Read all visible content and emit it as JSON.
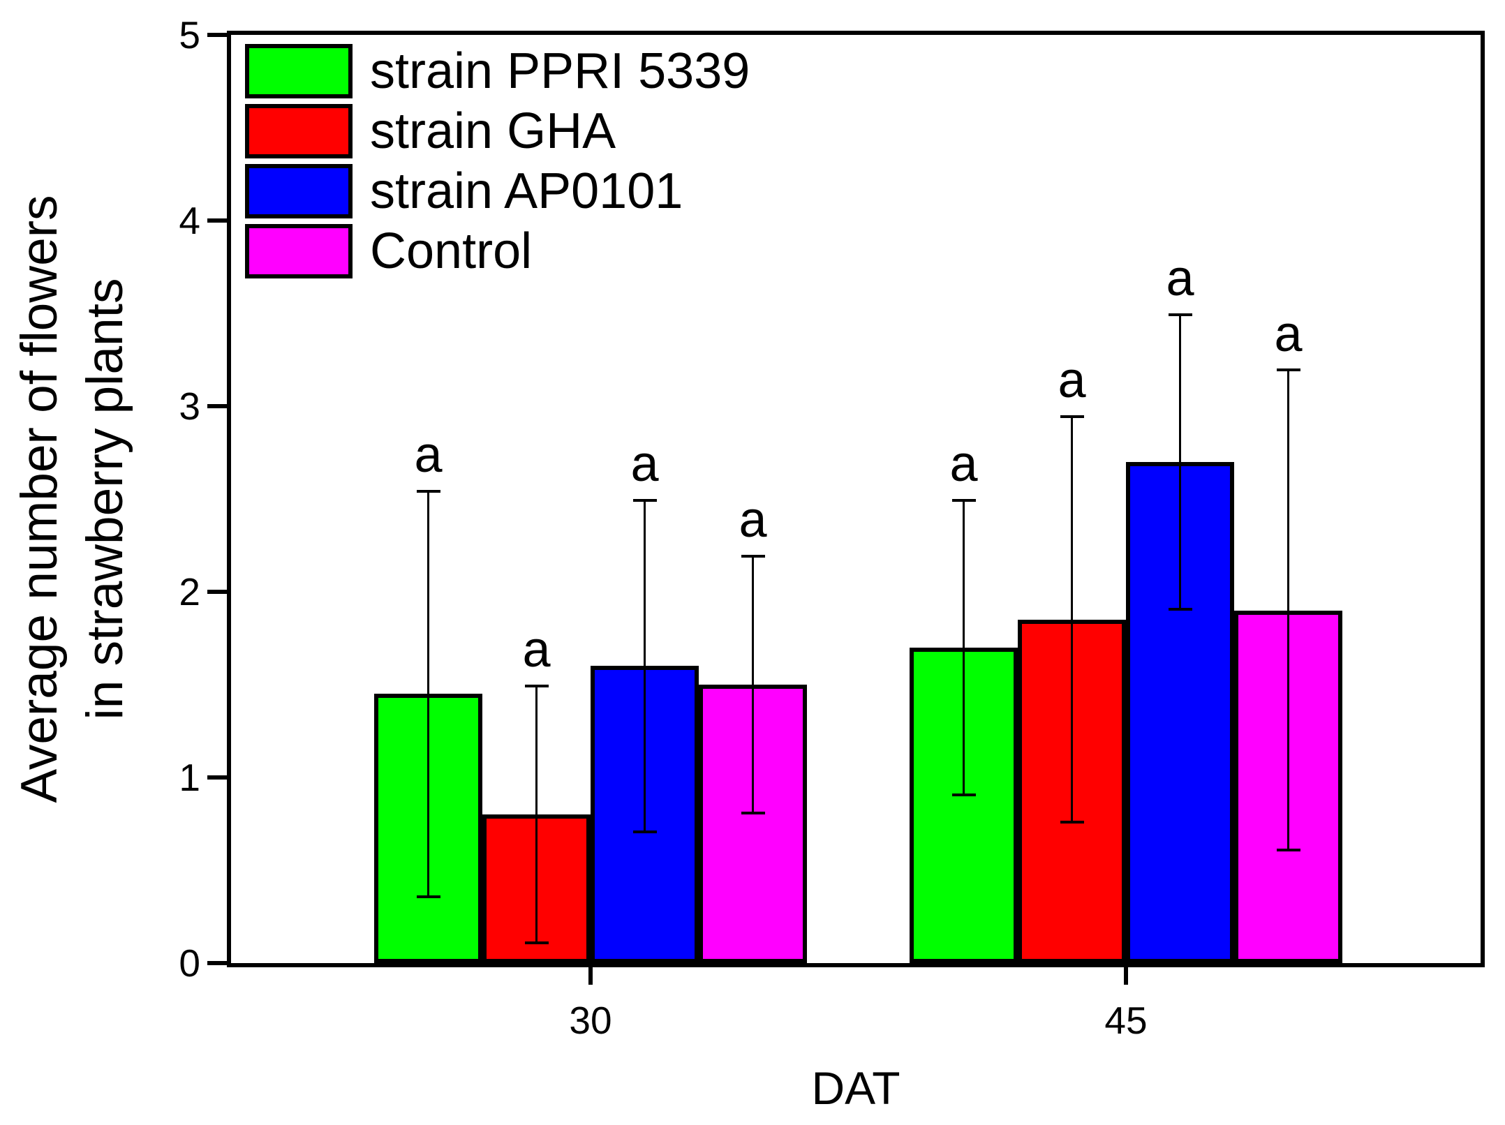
{
  "figure": {
    "y_axis": {
      "label_line1": "Average number of flowers",
      "label_line2": "in strawberry plants",
      "ticks": [
        "0",
        "1",
        "2",
        "3",
        "4",
        "5"
      ],
      "min": 0,
      "max": 5
    },
    "x_axis": {
      "label": "DAT",
      "categories": [
        "30",
        "45"
      ]
    },
    "legend": [
      {
        "label": "strain PPRI 5339",
        "color": "#00FF00"
      },
      {
        "label": "strain GHA",
        "color": "#FF0000"
      },
      {
        "label": "strain AP0101",
        "color": "#0000FF"
      },
      {
        "label": "Control",
        "color": "#FF00FF"
      }
    ],
    "significance_letter": "a"
  },
  "chart_data": {
    "type": "bar",
    "title": "",
    "xlabel": "DAT",
    "ylabel": "Average number of flowers in strawberry plants",
    "ylim": [
      0,
      5
    ],
    "grid": false,
    "legend_position": "upper-left-inside",
    "categories": [
      "30",
      "45"
    ],
    "series": [
      {
        "name": "strain PPRI 5339",
        "color": "#00FF00",
        "values": [
          1.45,
          1.7
        ],
        "errors": [
          1.1,
          0.8
        ]
      },
      {
        "name": "strain GHA",
        "color": "#FF0000",
        "values": [
          0.8,
          1.85
        ],
        "errors": [
          0.7,
          1.1
        ]
      },
      {
        "name": "strain AP0101",
        "color": "#0000FF",
        "values": [
          1.6,
          2.7
        ],
        "errors": [
          0.9,
          0.8
        ]
      },
      {
        "name": "Control",
        "color": "#FF00FF",
        "values": [
          1.5,
          1.9
        ],
        "errors": [
          0.7,
          1.3
        ]
      }
    ],
    "annotations": "letter a above the upper error-bar cap of every bar"
  }
}
